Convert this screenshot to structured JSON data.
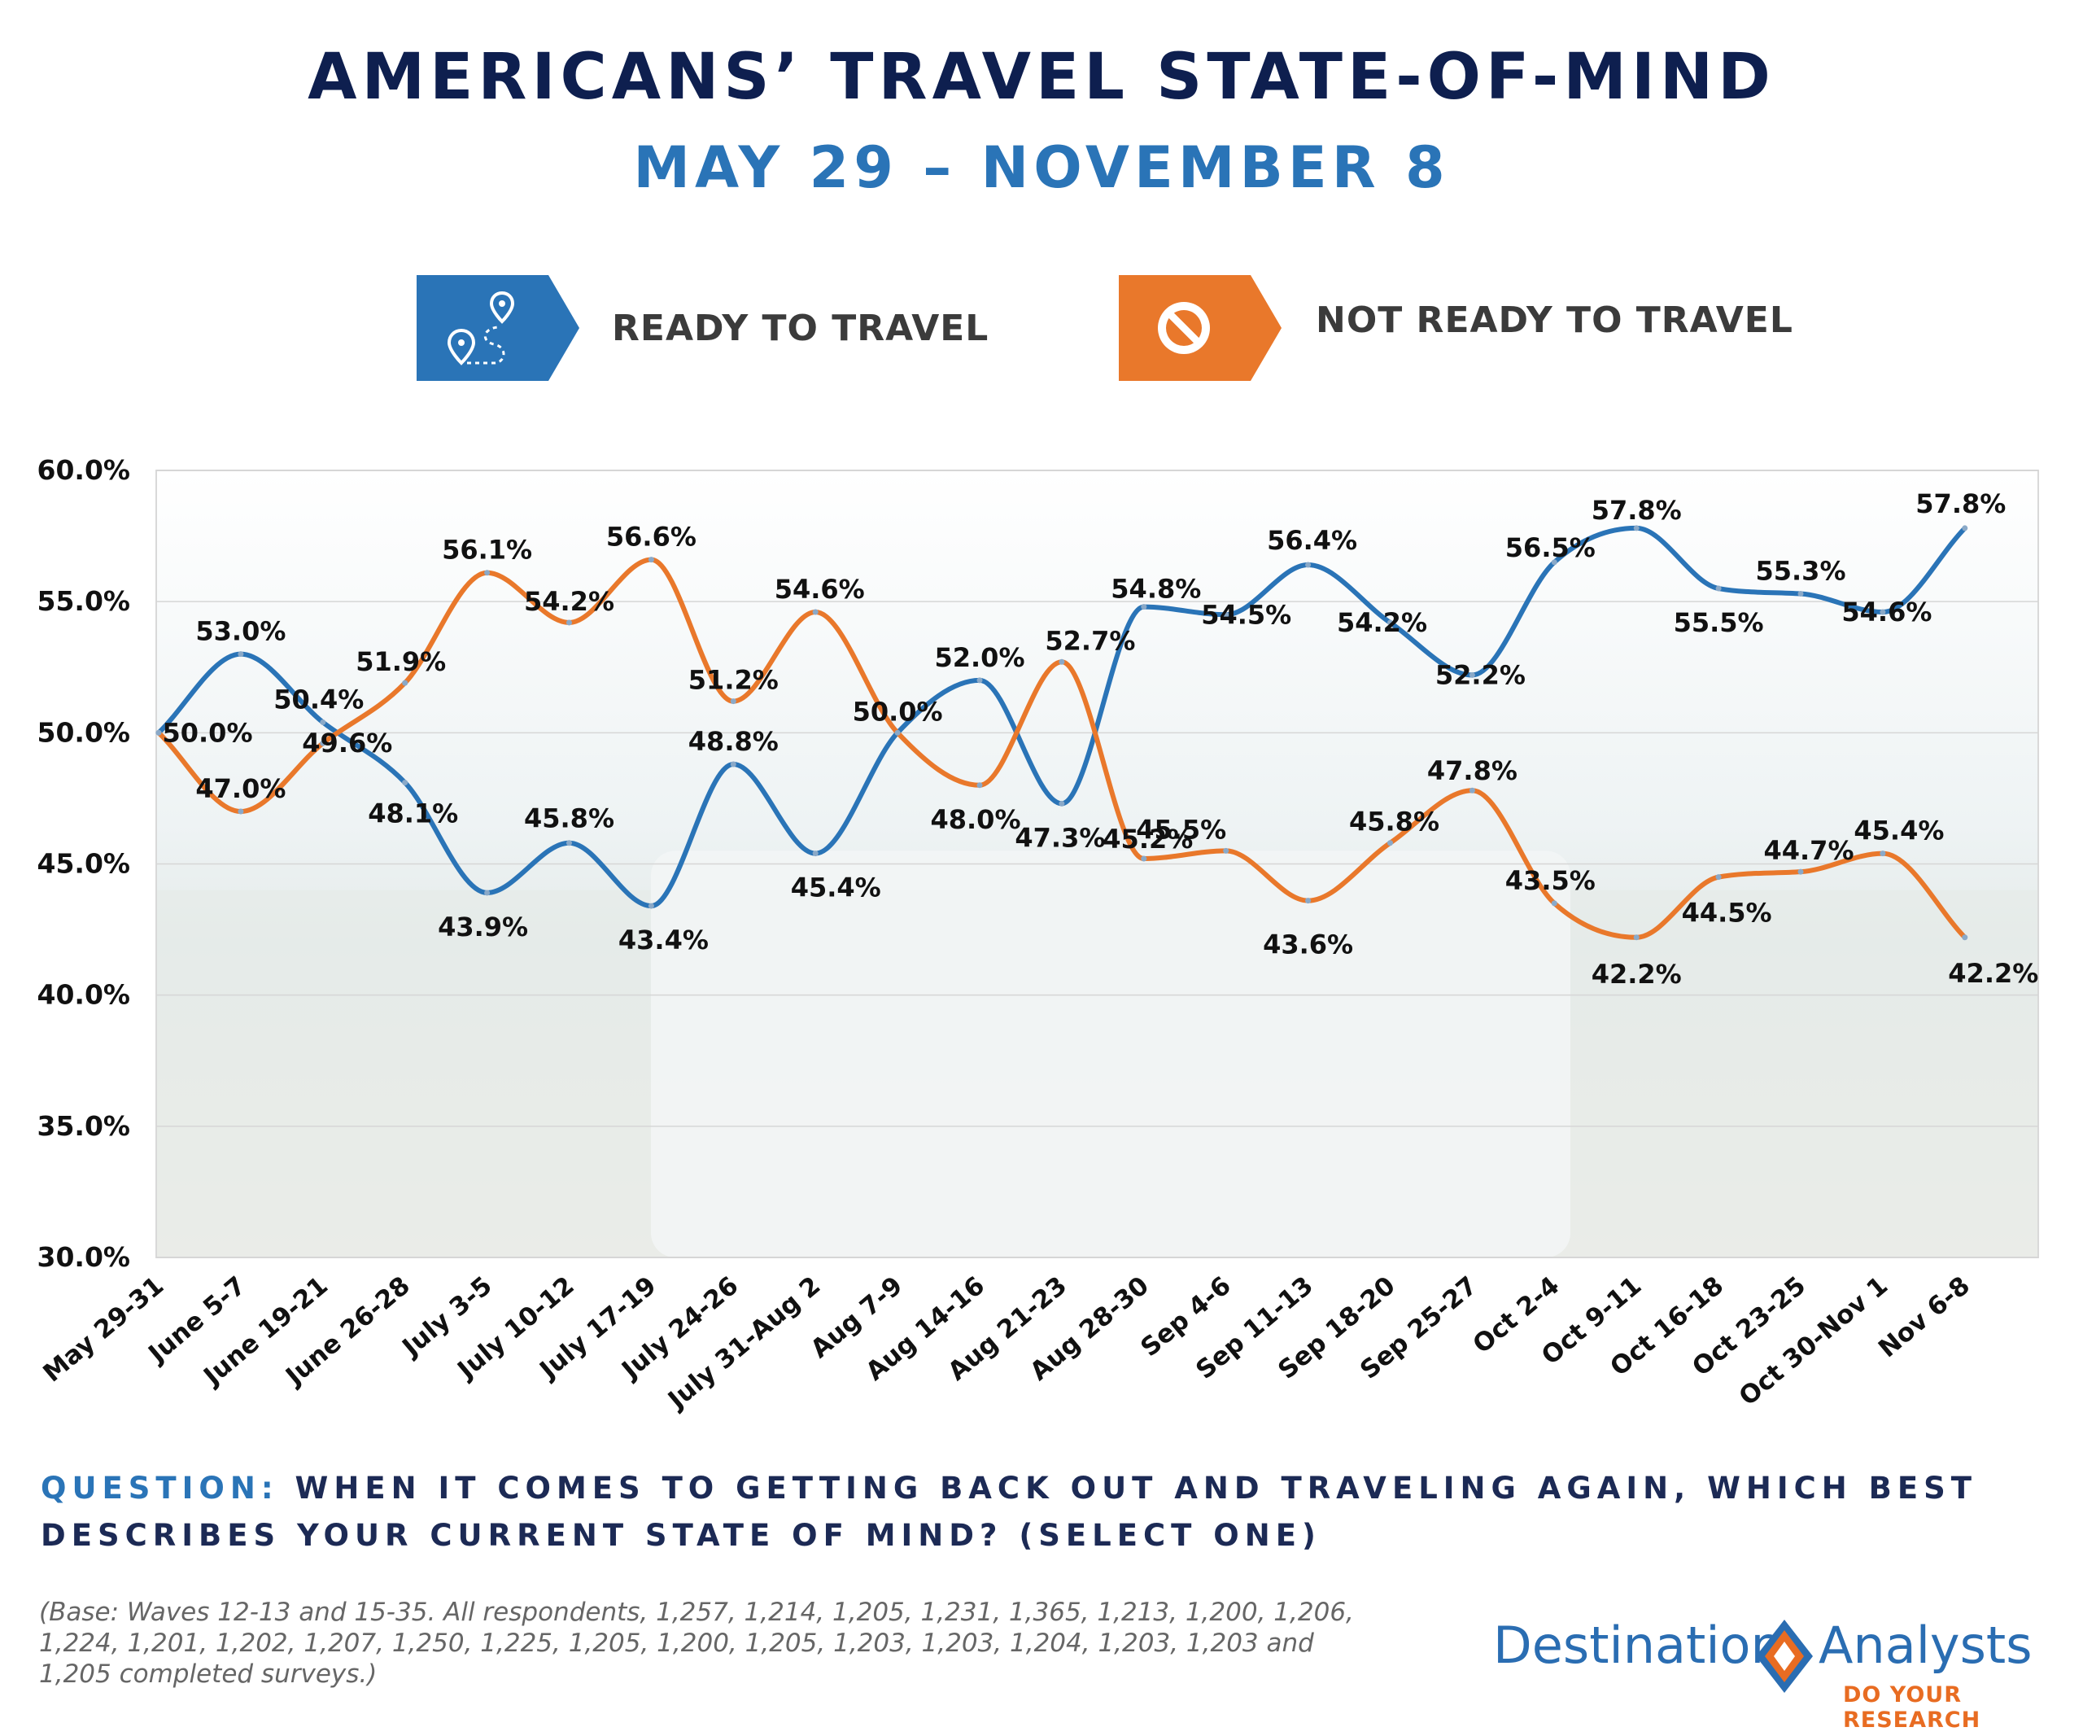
{
  "header": {
    "title": "AMERICANS’ TRAVEL STATE-OF-MIND",
    "subtitle": "MAY 29 – NOVEMBER 8"
  },
  "legend": {
    "ready": {
      "label": "READY TO TRAVEL",
      "color": "#2a74b7",
      "icon": "map-route-icon"
    },
    "not_ready": {
      "label": "NOT READY TO TRAVEL",
      "color": "#e9782b",
      "icon": "no-entry-icon"
    }
  },
  "chart_data": {
    "type": "line",
    "categories": [
      "May 29-31",
      "June 5-7",
      "June 19-21",
      "June 26-28",
      "July 3-5",
      "July 10-12",
      "July 17-19",
      "July 24-26",
      "July 31-Aug 2",
      "Aug 7-9",
      "Aug 14-16",
      "Aug 21-23",
      "Aug 28-30",
      "Sep 4-6",
      "Sep 11-13",
      "Sep 18-20",
      "Sep 25-27",
      "Oct 2-4",
      "Oct 9-11",
      "Oct 16-18",
      "Oct 23-25",
      "Oct 30-Nov 1",
      "Nov 6-8"
    ],
    "series": [
      {
        "name": "READY TO TRAVEL",
        "color": "#2a74b7",
        "values": [
          50.0,
          53.0,
          50.4,
          48.1,
          43.9,
          45.8,
          43.4,
          48.8,
          45.4,
          50.0,
          52.0,
          47.3,
          54.8,
          54.5,
          56.4,
          54.2,
          52.2,
          56.5,
          57.8,
          55.5,
          55.3,
          54.6,
          57.8
        ],
        "labels": [
          "",
          "53.0%",
          "50.4%",
          "48.1%",
          "43.9%",
          "45.8%",
          "43.4%",
          "48.8%",
          "45.4%",
          "50.0%",
          "52.0%",
          "47.3%",
          "54.8%",
          "54.5%",
          "56.4%",
          "54.2%",
          "52.2%",
          "56.5%",
          "57.8%",
          "55.5%",
          "55.3%",
          "54.6%",
          "57.8%"
        ]
      },
      {
        "name": "NOT READY TO TRAVEL",
        "color": "#e9782b",
        "values": [
          50.0,
          47.0,
          49.6,
          51.9,
          56.1,
          54.2,
          56.6,
          51.2,
          54.6,
          50.0,
          48.0,
          52.7,
          45.2,
          45.5,
          43.6,
          45.8,
          47.8,
          43.5,
          42.2,
          44.5,
          44.7,
          45.4,
          42.2
        ],
        "labels": [
          "50.0%",
          "47.0%",
          "49.6%",
          "51.9%",
          "56.1%",
          "54.2%",
          "56.6%",
          "51.2%",
          "54.6%",
          "",
          "48.0%",
          "52.7%",
          "45.2%",
          "45.5%",
          "43.6%",
          "45.8%",
          "47.8%",
          "43.5%",
          "42.2%",
          "44.5%",
          "44.7%",
          "45.4%",
          "42.2%"
        ]
      }
    ],
    "ylim": [
      30,
      60
    ],
    "yticks": [
      "30.0%",
      "35.0%",
      "40.0%",
      "45.0%",
      "50.0%",
      "55.0%",
      "60.0%"
    ],
    "grid": true
  },
  "question": {
    "prefix": "QUESTION:",
    "text": "WHEN IT COMES TO GETTING BACK OUT AND TRAVELING AGAIN, WHICH BEST DESCRIBES YOUR CURRENT STATE OF MIND? (SELECT ONE)"
  },
  "footnote": "(Base: Waves 12-13 and 15-35. All respondents, 1,257, 1,214, 1,205, 1,231, 1,365, 1,213, 1,200, 1,206, 1,224, 1,201, 1,202, 1,207, 1,250, 1,225, 1,205, 1,200, 1,205, 1,203, 1,203, 1,204, 1,203, 1,203 and 1,205 completed surveys.)",
  "logo": {
    "left_word": "Destination",
    "right_word": "Analysts",
    "tagline": "DO YOUR RESEARCH",
    "colors": {
      "blue": "#2a6db2",
      "orange": "#e86c22"
    }
  }
}
